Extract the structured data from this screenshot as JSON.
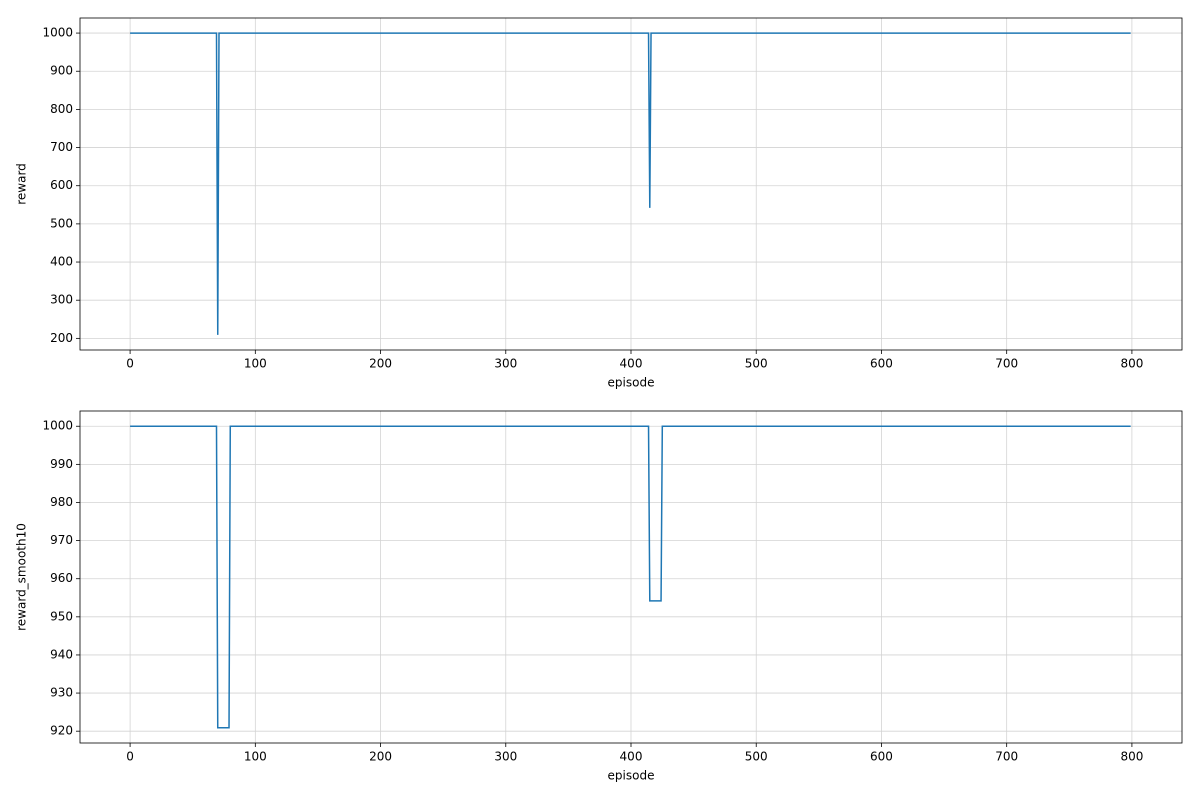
{
  "chart_data": [
    {
      "type": "line",
      "xlabel": "episode",
      "ylabel": "reward",
      "color": "#1f77b4",
      "grid": true,
      "x": [
        0,
        69,
        70,
        71,
        414,
        415,
        416,
        799
      ],
      "values": [
        1000,
        1000,
        209,
        1000,
        1000,
        542,
        1000,
        1000
      ],
      "xlim": [
        -40,
        840
      ],
      "xticks": [
        0,
        100,
        200,
        300,
        400,
        500,
        600,
        700,
        800
      ],
      "ylim": [
        169.5,
        1039.5
      ],
      "yticks": [
        200,
        300,
        400,
        500,
        600,
        700,
        800,
        900,
        1000
      ]
    },
    {
      "type": "line",
      "xlabel": "episode",
      "ylabel": "reward_smooth10",
      "color": "#1f77b4",
      "grid": true,
      "x": [
        0,
        69,
        70,
        79,
        80,
        414,
        415,
        424,
        425,
        799
      ],
      "values": [
        1000,
        1000,
        920.9,
        920.9,
        1000,
        1000,
        954.2,
        954.2,
        1000,
        1000
      ],
      "xlim": [
        -40,
        840
      ],
      "xticks": [
        0,
        100,
        200,
        300,
        400,
        500,
        600,
        700,
        800
      ],
      "ylim": [
        916.9,
        1004
      ],
      "yticks": [
        920,
        930,
        940,
        950,
        960,
        970,
        980,
        990,
        1000
      ]
    }
  ]
}
